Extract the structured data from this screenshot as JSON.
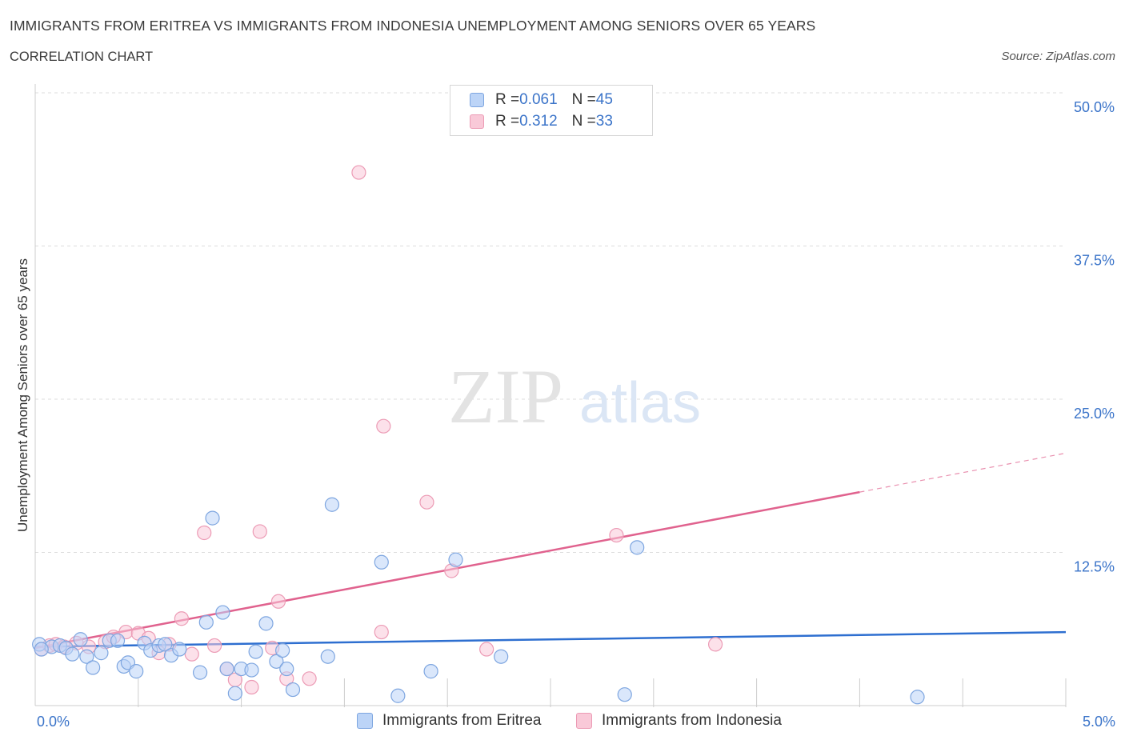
{
  "header": {
    "title": "IMMIGRANTS FROM ERITREA VS IMMIGRANTS FROM INDONESIA UNEMPLOYMENT AMONG SENIORS OVER 65 YEARS",
    "subtitle": "CORRELATION CHART",
    "source": "Source: ZipAtlas.com"
  },
  "watermark": {
    "zip": "ZIP",
    "atlas": "atlas"
  },
  "colors": {
    "eritrea_fill": "#bcd4f7",
    "eritrea_stroke": "#7ea6e0",
    "eritrea_line": "#2e6fd0",
    "indonesia_fill": "#f9c9d8",
    "indonesia_stroke": "#ec9bb5",
    "indonesia_line": "#e0628e",
    "axis_label": "#3b74c9",
    "grid": "#dddddd"
  },
  "legend": {
    "eritrea": {
      "r_label": "R = ",
      "r_value": "0.061",
      "n_label": "N = ",
      "n_value": "45"
    },
    "indonesia": {
      "r_label": "R = ",
      "r_value": "0.312",
      "n_label": "N = ",
      "n_value": "33"
    }
  },
  "chart_data": {
    "type": "scatter",
    "title": "IMMIGRANTS FROM ERITREA VS IMMIGRANTS FROM INDONESIA UNEMPLOYMENT AMONG SENIORS OVER 65 YEARS",
    "xlabel": "",
    "ylabel": "Unemployment Among Seniors over 65 years",
    "xlim": [
      0,
      5
    ],
    "ylim": [
      0,
      50
    ],
    "x_tick_labels": [
      "0.0%",
      "5.0%"
    ],
    "y_ticks": [
      {
        "value": 12.5,
        "label": "12.5%"
      },
      {
        "value": 25,
        "label": "25.0%"
      },
      {
        "value": 37.5,
        "label": "37.5%"
      },
      {
        "value": 50,
        "label": "50.0%"
      }
    ],
    "grid": true,
    "series": [
      {
        "name": "Immigrants from Eritrea",
        "r": 0.061,
        "n": 45,
        "trend": {
          "x": [
            0.0,
            5.0
          ],
          "y": [
            4.8,
            6.0
          ]
        },
        "points": [
          {
            "x": 0.02,
            "y": 5.0
          },
          {
            "x": 0.08,
            "y": 4.8
          },
          {
            "x": 0.12,
            "y": 4.9
          },
          {
            "x": 0.15,
            "y": 4.7
          },
          {
            "x": 0.18,
            "y": 4.2
          },
          {
            "x": 0.22,
            "y": 5.4
          },
          {
            "x": 0.25,
            "y": 4.0
          },
          {
            "x": 0.28,
            "y": 3.1
          },
          {
            "x": 0.32,
            "y": 4.3
          },
          {
            "x": 0.36,
            "y": 5.3
          },
          {
            "x": 0.4,
            "y": 5.3
          },
          {
            "x": 0.43,
            "y": 3.2
          },
          {
            "x": 0.45,
            "y": 3.5
          },
          {
            "x": 0.49,
            "y": 2.8
          },
          {
            "x": 0.53,
            "y": 5.1
          },
          {
            "x": 0.56,
            "y": 4.5
          },
          {
            "x": 0.6,
            "y": 4.9
          },
          {
            "x": 0.63,
            "y": 5.0
          },
          {
            "x": 0.66,
            "y": 4.1
          },
          {
            "x": 0.7,
            "y": 4.6
          },
          {
            "x": 0.8,
            "y": 2.7
          },
          {
            "x": 0.83,
            "y": 6.8
          },
          {
            "x": 0.86,
            "y": 15.3
          },
          {
            "x": 0.91,
            "y": 7.6
          },
          {
            "x": 0.93,
            "y": 3.0
          },
          {
            "x": 0.97,
            "y": 1.0
          },
          {
            "x": 1.0,
            "y": 3.0
          },
          {
            "x": 1.05,
            "y": 2.9
          },
          {
            "x": 1.07,
            "y": 4.4
          },
          {
            "x": 1.12,
            "y": 6.7
          },
          {
            "x": 1.17,
            "y": 3.6
          },
          {
            "x": 1.2,
            "y": 4.5
          },
          {
            "x": 1.22,
            "y": 3.0
          },
          {
            "x": 1.25,
            "y": 1.3
          },
          {
            "x": 1.42,
            "y": 4.0
          },
          {
            "x": 1.44,
            "y": 16.4
          },
          {
            "x": 1.68,
            "y": 11.7
          },
          {
            "x": 1.76,
            "y": 0.8
          },
          {
            "x": 1.92,
            "y": 2.8
          },
          {
            "x": 2.04,
            "y": 11.9
          },
          {
            "x": 2.26,
            "y": 4.0
          },
          {
            "x": 2.86,
            "y": 0.9
          },
          {
            "x": 2.92,
            "y": 12.9
          },
          {
            "x": 4.28,
            "y": 0.7
          },
          {
            "x": 0.03,
            "y": 4.6
          }
        ]
      },
      {
        "name": "Immigrants from Indonesia",
        "r": 0.312,
        "n": 33,
        "trend": {
          "x": [
            0.0,
            5.0
          ],
          "y": [
            4.7,
            20.6
          ],
          "solid_until_x": 4.0
        },
        "points": [
          {
            "x": 0.03,
            "y": 4.6
          },
          {
            "x": 0.07,
            "y": 4.9
          },
          {
            "x": 0.1,
            "y": 5.0
          },
          {
            "x": 0.14,
            "y": 4.8
          },
          {
            "x": 0.2,
            "y": 5.1
          },
          {
            "x": 0.26,
            "y": 4.8
          },
          {
            "x": 0.34,
            "y": 5.2
          },
          {
            "x": 0.38,
            "y": 5.6
          },
          {
            "x": 0.44,
            "y": 6.0
          },
          {
            "x": 0.5,
            "y": 5.9
          },
          {
            "x": 0.55,
            "y": 5.5
          },
          {
            "x": 0.6,
            "y": 4.3
          },
          {
            "x": 0.65,
            "y": 5.0
          },
          {
            "x": 0.71,
            "y": 7.1
          },
          {
            "x": 0.76,
            "y": 4.2
          },
          {
            "x": 0.82,
            "y": 14.1
          },
          {
            "x": 0.87,
            "y": 4.9
          },
          {
            "x": 0.93,
            "y": 3.0
          },
          {
            "x": 0.97,
            "y": 2.1
          },
          {
            "x": 1.05,
            "y": 1.5
          },
          {
            "x": 1.09,
            "y": 14.2
          },
          {
            "x": 1.15,
            "y": 4.7
          },
          {
            "x": 1.18,
            "y": 8.5
          },
          {
            "x": 1.22,
            "y": 2.2
          },
          {
            "x": 1.33,
            "y": 2.2
          },
          {
            "x": 1.57,
            "y": 43.5
          },
          {
            "x": 1.68,
            "y": 6.0
          },
          {
            "x": 1.69,
            "y": 22.8
          },
          {
            "x": 1.9,
            "y": 16.6
          },
          {
            "x": 2.02,
            "y": 11.0
          },
          {
            "x": 2.19,
            "y": 4.6
          },
          {
            "x": 2.82,
            "y": 13.9
          },
          {
            "x": 3.3,
            "y": 5.0
          }
        ]
      }
    ],
    "legend": [
      "Immigrants from Eritrea",
      "Immigrants from Indonesia"
    ]
  }
}
